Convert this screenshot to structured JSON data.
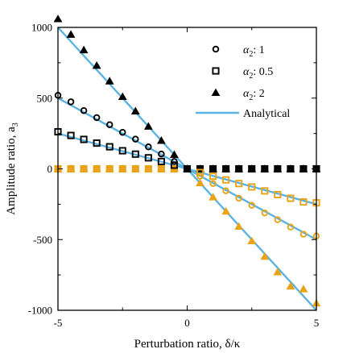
{
  "chart_data": {
    "type": "scatter",
    "xlabel": "Perturbation ratio, δ/κ",
    "ylabel": "Amplitude ratio, a",
    "ylabel_sub": "3",
    "xlim": [
      -5,
      5
    ],
    "ylim": [
      -1000,
      1000
    ],
    "xticks": [
      -5,
      0,
      5
    ],
    "yticks": [
      1000,
      500,
      0,
      -500,
      -1000
    ],
    "grid": false,
    "legend_position": "top-right",
    "colors": {
      "black": "#000000",
      "orange": "#E8A317",
      "line": "#5BB3E0"
    },
    "x": [
      -5,
      -4.5,
      -4,
      -3.5,
      -3,
      -2.5,
      -2,
      -1.5,
      -1,
      -0.5,
      0.5,
      1,
      1.5,
      2,
      2.5,
      3,
      3.5,
      4,
      4.5,
      5
    ],
    "series": [
      {
        "name": "α₂: 1",
        "legend_base": "α",
        "legend_sub": "2",
        "legend_suffix": ": 1",
        "marker": "circle",
        "values": [
          520,
          474,
          412,
          362,
          312,
          258,
          210,
          155,
          105,
          52,
          -52,
          -104,
          -155,
          -208,
          -258,
          -312,
          -360,
          -412,
          -462,
          -475
        ]
      },
      {
        "name": "α₂: 0.5",
        "legend_base": "α",
        "legend_sub": "2",
        "legend_suffix": ": 0.5",
        "marker": "square",
        "values": [
          262,
          236,
          208,
          182,
          156,
          128,
          104,
          78,
          52,
          26,
          -26,
          -52,
          -78,
          -104,
          -128,
          -156,
          -182,
          -208,
          -234,
          -240
        ]
      },
      {
        "name": "α₂: 2",
        "legend_base": "α",
        "legend_sub": "2",
        "legend_suffix": ": 2",
        "marker": "triangle",
        "values": [
          1060,
          950,
          840,
          730,
          620,
          510,
          408,
          300,
          200,
          100,
          -100,
          -200,
          -300,
          -408,
          -510,
          -620,
          -730,
          -830,
          -850,
          -950
        ]
      }
    ],
    "analytical": {
      "name": "Analytical",
      "slopes": [
        -100,
        -50,
        -200
      ]
    },
    "zero_points": [
      -5,
      -4.5,
      -4,
      -3.5,
      -3,
      -2.5,
      -2,
      -1.5,
      -1,
      -0.5,
      0,
      0.5,
      1,
      1.5,
      2,
      2.5,
      3,
      3.5,
      4,
      4.5,
      5
    ]
  }
}
